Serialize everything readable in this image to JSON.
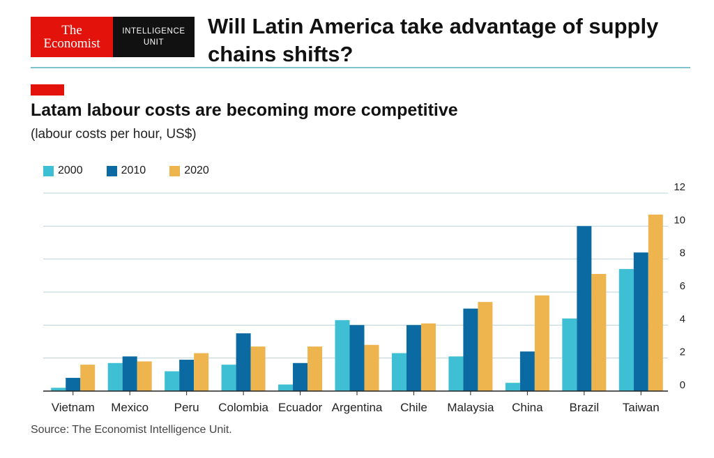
{
  "brand": {
    "line1": "The",
    "line2": "Economist",
    "unit_line1": "INTELLIGENCE",
    "unit_line2": "UNIT"
  },
  "headline": "Will Latin America take advantage of supply chains shifts?",
  "source": "Source: The Economist Intelligence Unit.",
  "colors": {
    "s2000": "#3fbfd4",
    "s2010": "#0b6aa2",
    "s2020": "#eeb54f",
    "accent": "#e3120b",
    "rule": "#7fc4cc"
  },
  "chart_data": {
    "type": "bar",
    "title": "Latam labour costs are becoming more competitive",
    "subtitle": "(labour costs per hour, US$)",
    "categories": [
      "Vietnam",
      "Mexico",
      "Peru",
      "Colombia",
      "Ecuador",
      "Argentina",
      "Chile",
      "Malaysia",
      "China",
      "Brazil",
      "Taiwan"
    ],
    "series": [
      {
        "name": "2000",
        "values": [
          0.2,
          1.7,
          1.2,
          1.6,
          0.4,
          4.3,
          2.3,
          2.1,
          0.5,
          4.4,
          7.4
        ]
      },
      {
        "name": "2010",
        "values": [
          0.8,
          2.1,
          1.9,
          3.5,
          1.7,
          4.0,
          4.0,
          5.0,
          2.4,
          10.0,
          8.4
        ]
      },
      {
        "name": "2020",
        "values": [
          1.6,
          1.8,
          2.3,
          2.7,
          2.7,
          2.8,
          4.1,
          5.4,
          5.8,
          7.1,
          10.7
        ]
      }
    ],
    "yticks": [
      0,
      2,
      4,
      6,
      8,
      10,
      12
    ],
    "ylim": [
      0,
      12
    ],
    "y_axis_side": "right",
    "grid": true,
    "legend_position": "top-left"
  }
}
